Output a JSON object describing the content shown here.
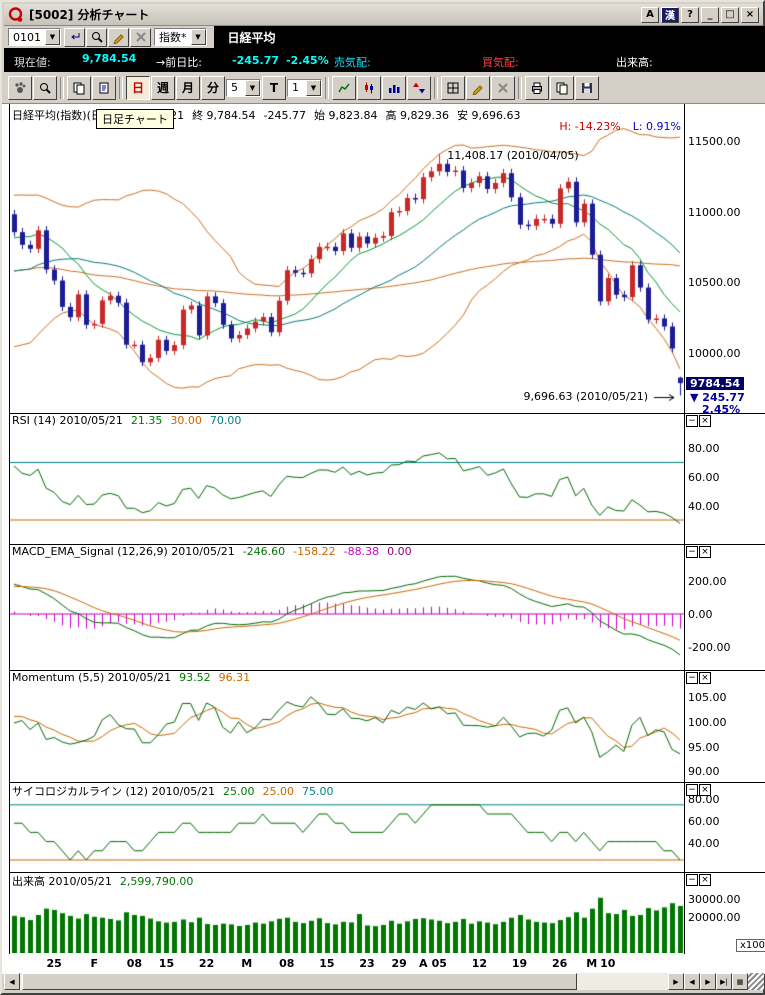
{
  "window": {
    "title": "[5002] 分析チャート",
    "buttons": [
      {
        "name": "a-button",
        "label": "A"
      },
      {
        "name": "ime-button",
        "label": "漢"
      },
      {
        "name": "help-button",
        "label": "?"
      },
      {
        "name": "minimize-button",
        "label": "_"
      },
      {
        "name": "maximize-button",
        "label": "□"
      },
      {
        "name": "close-button",
        "label": "×"
      }
    ]
  },
  "toolbar1": {
    "code_value": "0101",
    "buttons": [
      {
        "name": "jump-button",
        "icon": "enter"
      },
      {
        "name": "symbol-search-button",
        "icon": "magnifier"
      },
      {
        "name": "edit-button",
        "icon": "pencil"
      },
      {
        "name": "clear-button",
        "icon": "x"
      }
    ],
    "category_value": "指数*",
    "symbol_name": "日経平均"
  },
  "quote_bar": {
    "current_label": "現在値:",
    "current_value": "9,784.54",
    "change_label": "→前日比:",
    "change_value": "-245.77",
    "change_pct": "-2.45%",
    "ask_label": "売気配:",
    "bid_label": "買気配:",
    "volume_label": "出来高:"
  },
  "toolbar2": {
    "buttons": [
      {
        "name": "chart-drag-button",
        "icon": "hand"
      },
      {
        "name": "chart-zoom-button",
        "icon": "magnifier"
      },
      {
        "type": "sep"
      },
      {
        "name": "copy-page-button",
        "icon": "copy"
      },
      {
        "name": "new-page-button",
        "icon": "doc"
      },
      {
        "type": "sep"
      },
      {
        "name": "period-daily-button",
        "label": "日",
        "active": true,
        "color": "#cc0000"
      },
      {
        "name": "period-weekly-button",
        "label": "週"
      },
      {
        "name": "period-monthly-button",
        "label": "月"
      },
      {
        "name": "period-minute-button",
        "label": "分"
      },
      {
        "name": "minute-select",
        "type": "select",
        "value": "5"
      },
      {
        "name": "tick-button",
        "label": "T"
      },
      {
        "name": "tick-select",
        "type": "select",
        "value": "1"
      },
      {
        "type": "sep"
      },
      {
        "name": "line-chart-button",
        "icon": "line"
      },
      {
        "name": "candle-chart-button",
        "icon": "candle"
      },
      {
        "name": "bar-chart-button",
        "icon": "bars"
      },
      {
        "name": "compare-chart-button",
        "icon": "arrows"
      },
      {
        "type": "sep"
      },
      {
        "name": "grid-toggle-button",
        "icon": "grid"
      },
      {
        "name": "draw-line-button",
        "icon": "pencil",
        "disabled": true
      },
      {
        "name": "delete-line-button",
        "icon": "x",
        "disabled": true
      },
      {
        "type": "sep"
      },
      {
        "name": "print-button",
        "icon": "print"
      },
      {
        "name": "copy-image-button",
        "icon": "doc2"
      },
      {
        "name": "save-button",
        "icon": "save"
      }
    ]
  },
  "tooltip": {
    "text": "日足チャート"
  },
  "panels": [
    {
      "id": "main",
      "title": "日経平均(指数)(日間) 2010/05/21",
      "values": [
        {
          "t": "終 9,784.54",
          "c": "black"
        },
        {
          "t": "-245.77",
          "c": "black"
        },
        {
          "t": "始 9,823.84",
          "c": "black"
        },
        {
          "t": "高 9,829.36",
          "c": "black"
        },
        {
          "t": "安 9,696.63",
          "c": "black"
        }
      ],
      "yticks": [
        {
          "t": "11500.00",
          "v": 11500
        },
        {
          "t": "11000.00",
          "v": 11000
        },
        {
          "t": "10500.00",
          "v": 10500
        },
        {
          "t": "10000.00",
          "v": 10000
        }
      ],
      "high_label": "H: -14.23%",
      "low_label": "L: 0.91%",
      "annotation_high": "11,408.17 (2010/04/05)",
      "annotation_low": "9,696.63 (2010/05/21)",
      "badge": {
        "price": "9784.54",
        "change": "▼ 245.77",
        "pct": "2.45%"
      }
    },
    {
      "id": "rsi",
      "title": "RSI (14) 2010/05/21",
      "values": [
        {
          "t": "21.35",
          "c": "green"
        },
        {
          "t": "30.00",
          "c": "orange"
        },
        {
          "t": "70.00",
          "c": "teal"
        }
      ],
      "yticks": [
        {
          "t": "80.00",
          "v": 80
        },
        {
          "t": "60.00",
          "v": 60
        },
        {
          "t": "40.00",
          "v": 40
        }
      ]
    },
    {
      "id": "macd",
      "title": "MACD_EMA_Signal (12,26,9) 2010/05/21",
      "values": [
        {
          "t": "-246.60",
          "c": "green"
        },
        {
          "t": "-158.22",
          "c": "orange"
        },
        {
          "t": "-88.38",
          "c": "magenta"
        },
        {
          "t": "0.00",
          "c": "purple"
        }
      ],
      "yticks": [
        {
          "t": "200.00",
          "v": 200
        },
        {
          "t": "0.00",
          "v": 0
        },
        {
          "t": "-200.00",
          "v": -200
        }
      ]
    },
    {
      "id": "momentum",
      "title": "Momentum (5,5) 2010/05/21",
      "values": [
        {
          "t": "93.52",
          "c": "green"
        },
        {
          "t": "96.31",
          "c": "orange"
        }
      ],
      "yticks": [
        {
          "t": "105.00",
          "v": 105
        },
        {
          "t": "100.00",
          "v": 100
        },
        {
          "t": "95.00",
          "v": 95
        },
        {
          "t": "90.00",
          "v": 90
        }
      ]
    },
    {
      "id": "psych",
      "title": "サイコロジカルライン (12) 2010/05/21",
      "values": [
        {
          "t": "25.00",
          "c": "green"
        },
        {
          "t": "25.00",
          "c": "orange"
        },
        {
          "t": "75.00",
          "c": "teal"
        }
      ],
      "yticks": [
        {
          "t": "80.00",
          "v": 80
        },
        {
          "t": "60.00",
          "v": 60
        },
        {
          "t": "40.00",
          "v": 40
        }
      ]
    },
    {
      "id": "volume",
      "title": "出来高 2010/05/21",
      "values": [
        {
          "t": "2,599,790.00",
          "c": "green"
        }
      ],
      "yticks": [
        {
          "t": "30000.00",
          "v": 30000
        },
        {
          "t": "20000.00",
          "v": 20000
        }
      ],
      "multiplier": "x100"
    }
  ],
  "chart_data": {
    "type": "candlestick",
    "symbol": "日経平均",
    "interval": "daily",
    "last_date": "2010/05/21",
    "ohlc_last": {
      "open": 9823.84,
      "high": 9829.36,
      "low": 9696.63,
      "close": 9784.54
    },
    "period_high": {
      "value": 11408.17,
      "date": "2010/04/05",
      "index": 53
    },
    "period_low": {
      "value": 9696.63,
      "date": "2010/05/21",
      "index": 83
    },
    "pre_closes": [
      10105,
      10140,
      10164,
      10142,
      10183,
      10378,
      10524,
      10536,
      10494,
      10638,
      10681,
      10546,
      10654,
      10681,
      10731,
      10681,
      10798,
      10879,
      10735,
      10907,
      10891,
      10982
    ],
    "closes": [
      10855,
      10765,
      10737,
      10868,
      10590,
      10512,
      10325,
      10252,
      10414,
      10198,
      10205,
      10371,
      10404,
      10355,
      10057,
      10057,
      9932,
      9963,
      10092,
      10013,
      10054,
      10306,
      10335,
      10123,
      10400,
      10352,
      10198,
      10101,
      10126,
      10172,
      10221,
      10253,
      10145,
      10369,
      10585,
      10567,
      10563,
      10664,
      10751,
      10751,
      10721,
      10846,
      10744,
      10824,
      10774,
      10815,
      10828,
      10996,
      11005,
      11097,
      11089,
      11244,
      11286,
      11339,
      11282,
      11292,
      11168,
      11204,
      11251,
      11161,
      11204,
      11273,
      11102,
      10908,
      10900,
      10949,
      10949,
      10914,
      11165,
      11212,
      10924,
      11057,
      10695,
      10364,
      10530,
      10411,
      10394,
      10620,
      10462,
      10235,
      10243,
      10186,
      10030,
      9784.54
    ],
    "volumes_x100": [
      20500,
      19800,
      18200,
      21000,
      24500,
      23800,
      22000,
      20500,
      19000,
      21500,
      20000,
      19500,
      18800,
      18000,
      22500,
      21000,
      20500,
      19000,
      17500,
      16800,
      17200,
      18500,
      17000,
      19500,
      16000,
      15500,
      16200,
      15800,
      14900,
      15500,
      16800,
      16200,
      17500,
      18900,
      19500,
      17200,
      16500,
      17800,
      19200,
      16500,
      15800,
      17200,
      16900,
      21500,
      15200,
      14800,
      15500,
      17800,
      16200,
      17500,
      18800,
      19200,
      18500,
      17800,
      16500,
      17200,
      18800,
      16200,
      17500,
      16800,
      15900,
      17200,
      19500,
      21000,
      18500,
      17200,
      16800,
      16500,
      18200,
      19800,
      22500,
      19500,
      24500,
      30500,
      22000,
      21500,
      23800,
      20500,
      21000,
      24800,
      23500,
      25200,
      27500,
      25998
    ],
    "x_ticks": [
      {
        "label": "25",
        "index": 5
      },
      {
        "label": "F",
        "index": 10
      },
      {
        "label": "08",
        "index": 15
      },
      {
        "label": "15",
        "index": 19
      },
      {
        "label": "22",
        "index": 24
      },
      {
        "label": "M",
        "index": 29
      },
      {
        "label": "08",
        "index": 34
      },
      {
        "label": "15",
        "index": 39
      },
      {
        "label": "23",
        "index": 44
      },
      {
        "label": "29",
        "index": 48
      },
      {
        "label": "A",
        "index": 51
      },
      {
        "label": "05",
        "index": 53
      },
      {
        "label": "12",
        "index": 58
      },
      {
        "label": "19",
        "index": 63
      },
      {
        "label": "26",
        "index": 68
      },
      {
        "label": "M",
        "index": 72
      },
      {
        "label": "10",
        "index": 74
      }
    ],
    "ylims": {
      "main": [
        9580,
        11650
      ],
      "rsi": [
        14,
        94
      ],
      "macd": [
        -330,
        330
      ],
      "momentum": [
        88,
        107.5
      ],
      "psych": [
        15,
        83
      ],
      "volume": [
        0,
        37000
      ]
    },
    "refs": {
      "rsi": [
        70,
        30
      ],
      "psych": [
        75,
        25
      ],
      "macd_zero": 0
    },
    "indicator_params": {
      "rsi": 14,
      "macd": [
        12,
        26,
        9
      ],
      "momentum": [
        5,
        5
      ],
      "psych": 12,
      "ma_short": 10,
      "ma_long": 25,
      "ma_slow": 75,
      "bollinger": [
        25,
        2
      ]
    },
    "colors": {
      "up": "#c82828",
      "down": "#1c1c96",
      "band": "#c87020",
      "ma_short": "#009933",
      "ma_long": "#007878",
      "ma_slow": "#c87020",
      "rsi": "#006600",
      "ref_teal": "#008080",
      "ref_orange": "#cc6600",
      "macd": "#006600",
      "signal": "#cc6600",
      "hist": "#cc00cc",
      "zero": "#bb00bb",
      "momentum": "#006600",
      "momentum_sma": "#cc6600",
      "psych": "#006600",
      "volume": "#007700"
    }
  }
}
